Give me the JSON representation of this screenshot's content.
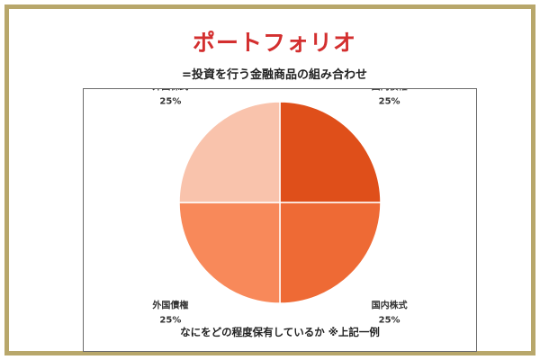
{
  "header": {
    "title": "ポートフォリオ",
    "subtitle": "=投資を行う金融商品の組み合わせ"
  },
  "caption": "なにをどの程度保有しているか ※上記一例",
  "colors": {
    "frame": "#b8a76b",
    "title": "#d32f2f"
  },
  "chart_data": {
    "type": "pie",
    "title": "",
    "start": "top",
    "direction": "clockwise",
    "slices": [
      {
        "label": "国内債権",
        "value": 25,
        "value_label": "25%",
        "color": "#df4f1a"
      },
      {
        "label": "国内株式",
        "value": 25,
        "value_label": "25%",
        "color": "#ee6a35"
      },
      {
        "label": "外国債権",
        "value": 25,
        "value_label": "25%",
        "color": "#f8895a"
      },
      {
        "label": "外国株式",
        "value": 25,
        "value_label": "25%",
        "color": "#f9c3ac"
      }
    ]
  }
}
